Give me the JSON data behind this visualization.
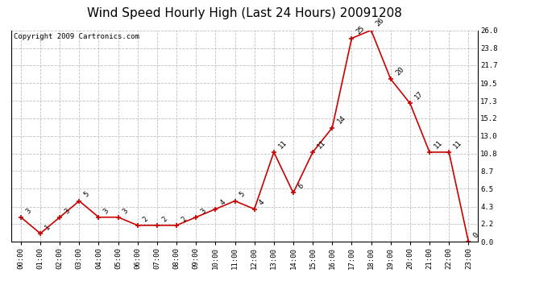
{
  "title": "Wind Speed Hourly High (Last 24 Hours) 20091208",
  "copyright": "Copyright 2009 Cartronics.com",
  "hours": [
    "00:00",
    "01:00",
    "02:00",
    "03:00",
    "04:00",
    "05:00",
    "06:00",
    "07:00",
    "08:00",
    "09:00",
    "10:00",
    "11:00",
    "12:00",
    "13:00",
    "14:00",
    "15:00",
    "16:00",
    "17:00",
    "18:00",
    "19:00",
    "20:00",
    "21:00",
    "22:00",
    "23:00"
  ],
  "values": [
    3,
    1,
    3,
    5,
    3,
    3,
    2,
    2,
    2,
    3,
    4,
    5,
    4,
    11,
    6,
    11,
    14,
    25,
    26,
    20,
    17,
    11,
    11,
    0
  ],
  "line_color": "#cc0000",
  "marker_color": "#cc0000",
  "bg_color": "#ffffff",
  "grid_color": "#c0c0c0",
  "ylim": [
    0,
    26.0
  ],
  "yticks": [
    0.0,
    2.2,
    4.3,
    6.5,
    8.7,
    10.8,
    13.0,
    15.2,
    17.3,
    19.5,
    21.7,
    23.8,
    26.0
  ],
  "title_fontsize": 11,
  "copyright_fontsize": 6.5,
  "label_fontsize": 6.5,
  "tick_fontsize": 6.5
}
